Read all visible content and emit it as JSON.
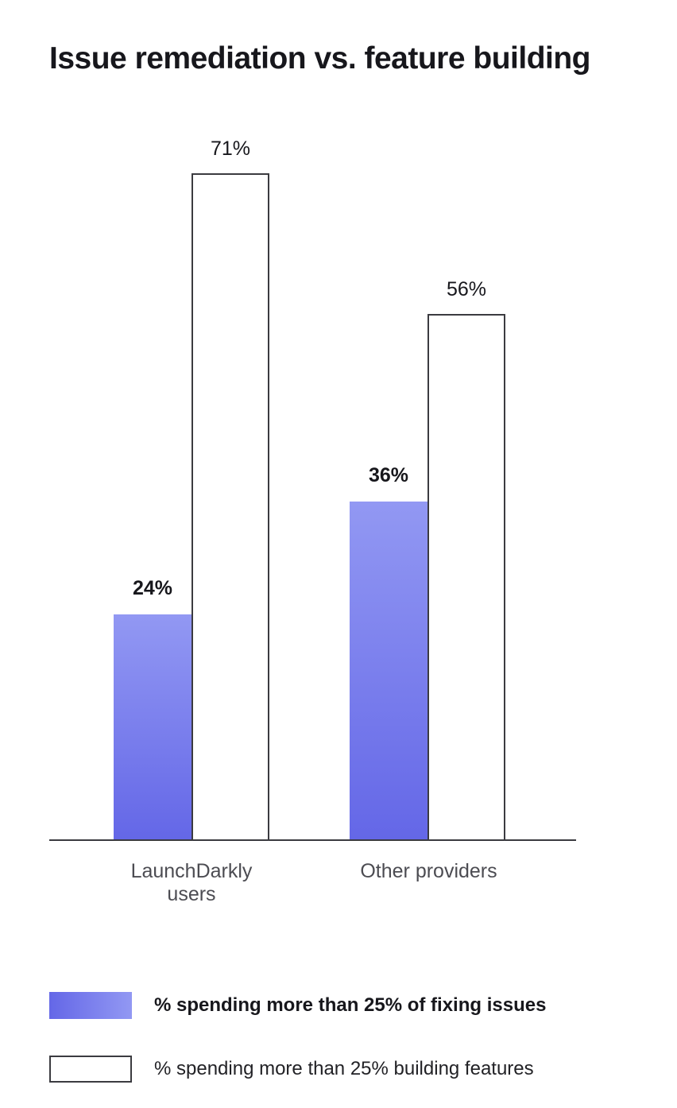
{
  "page": {
    "background": "#ffffff"
  },
  "chart_data": {
    "type": "bar",
    "title": "Issue remediation vs. feature building",
    "categories": [
      "LaunchDarkly users",
      "Other providers"
    ],
    "series": [
      {
        "name": "% spending more than 25% of fixing issues",
        "values": [
          24,
          36
        ],
        "labels": [
          "24%",
          "36%"
        ],
        "style": "filled",
        "bold_labels": true,
        "color_top": "#9298f3",
        "color_bottom": "#6467e7"
      },
      {
        "name": "% spending more than 25% building features",
        "values": [
          71,
          56
        ],
        "labels": [
          "71%",
          "56%"
        ],
        "style": "outlined",
        "bold_labels": false,
        "fill": "#ffffff",
        "border_color": "#3b3b40"
      }
    ],
    "ylim": [
      0,
      75
    ],
    "grid": false,
    "legend_position": "bottom-left",
    "axis_color": "#3b3b40",
    "value_label_color": "#17171c",
    "category_label_color": "#4c4c52"
  }
}
